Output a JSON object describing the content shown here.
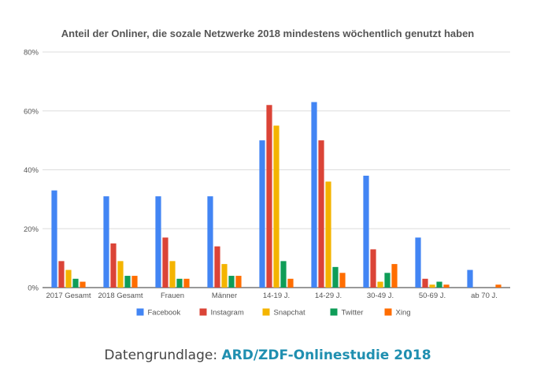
{
  "chart_data": {
    "type": "bar",
    "title": "Anteil der Onliner, die sozale Netzwerke 2018 mindestens wöchentlich genutzt haben",
    "xlabel": "",
    "ylabel": "",
    "ylim": [
      0,
      80
    ],
    "yticks": [
      "0%",
      "20%",
      "40%",
      "60%",
      "80%"
    ],
    "ytick_values": [
      0,
      20,
      40,
      60,
      80
    ],
    "grid": true,
    "legend_position": "bottom",
    "categories": [
      "2017 Gesamt",
      "2018 Gesamt",
      "Frauen",
      "Männer",
      "14-19 J.",
      "14-29 J.",
      "30-49 J.",
      "50-69 J.",
      "ab 70 J."
    ],
    "series": [
      {
        "name": "Facebook",
        "color": "#4285f4",
        "values": [
          33,
          31,
          31,
          31,
          50,
          63,
          38,
          17,
          6
        ]
      },
      {
        "name": "Instagram",
        "color": "#db4437",
        "values": [
          9,
          15,
          17,
          14,
          62,
          50,
          13,
          3,
          0
        ]
      },
      {
        "name": "Snapchat",
        "color": "#f4b400",
        "values": [
          6,
          9,
          9,
          8,
          55,
          36,
          2,
          1,
          0
        ]
      },
      {
        "name": "Twitter",
        "color": "#0f9d58",
        "values": [
          3,
          4,
          3,
          4,
          9,
          7,
          5,
          2,
          0
        ]
      },
      {
        "name": "Xing",
        "color": "#ff6d00",
        "values": [
          2,
          4,
          3,
          4,
          3,
          5,
          8,
          1,
          1
        ]
      }
    ]
  },
  "source": {
    "prefix": "Datengrundlage: ",
    "link_text": "ARD/ZDF-Onlinestudie 2018"
  }
}
